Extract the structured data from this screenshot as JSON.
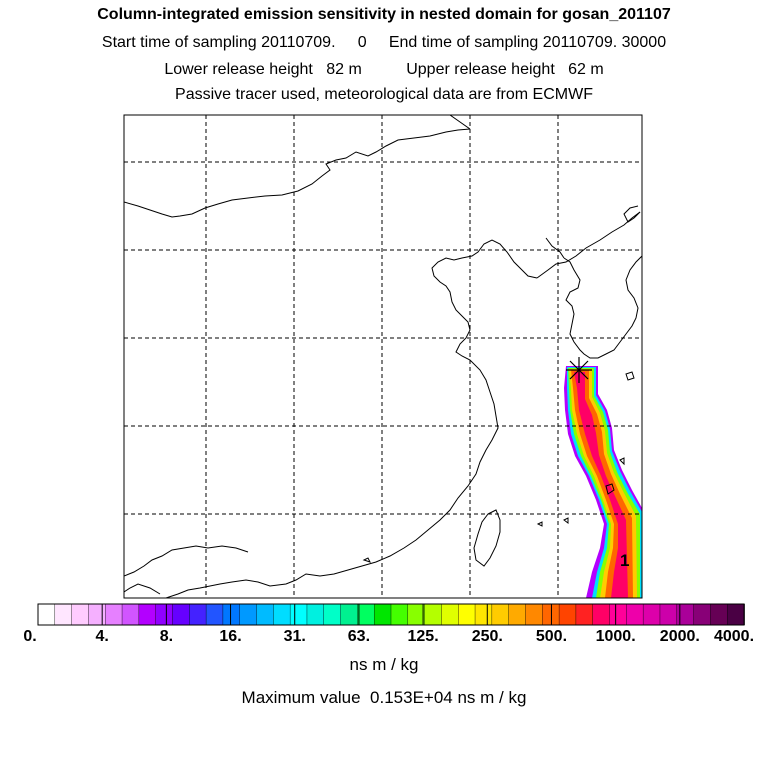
{
  "header": {
    "title": "Column-integrated emission sensitivity in nested domain for gosan_201107",
    "sampling": "Start time of sampling 20110709.     0     End time of sampling 20110709. 30000",
    "release": "Lower release height   82 m          Upper release height   62 m",
    "tracer": "Passive tracer used, meteorological data are from ECMWF"
  },
  "map": {
    "plume_label": "1",
    "receptor_marker": "star-icon"
  },
  "colorbar": {
    "tick_labels": [
      "0.",
      "4.",
      "8.",
      "16.",
      "31.",
      "63.",
      "125.",
      "250.",
      "500.",
      "1000.",
      "2000.",
      "4000."
    ],
    "colors": [
      "#ffffff",
      "#ffe6ff",
      "#ffccff",
      "#f5b0ff",
      "#e680ff",
      "#d155ff",
      "#b300ff",
      "#9000ff",
      "#6600ff",
      "#4422ff",
      "#2255ff",
      "#0077ff",
      "#0099ff",
      "#00bbff",
      "#00ddff",
      "#00ffff",
      "#00f0e0",
      "#00ffc8",
      "#00f090",
      "#00ff60",
      "#00e600",
      "#44ff00",
      "#88ff00",
      "#b4ff00",
      "#e0ff00",
      "#ffff00",
      "#ffe600",
      "#ffcc00",
      "#ffaa00",
      "#ff8800",
      "#ff6600",
      "#ff4400",
      "#ff2222",
      "#ff0066",
      "#ff0099",
      "#ee00aa",
      "#dd00aa",
      "#cc00aa",
      "#aa0099",
      "#880077",
      "#660055",
      "#4a0044"
    ],
    "units": "ns m / kg"
  },
  "footer": {
    "max_value": "Maximum value  0.153E+04 ns m / kg"
  }
}
